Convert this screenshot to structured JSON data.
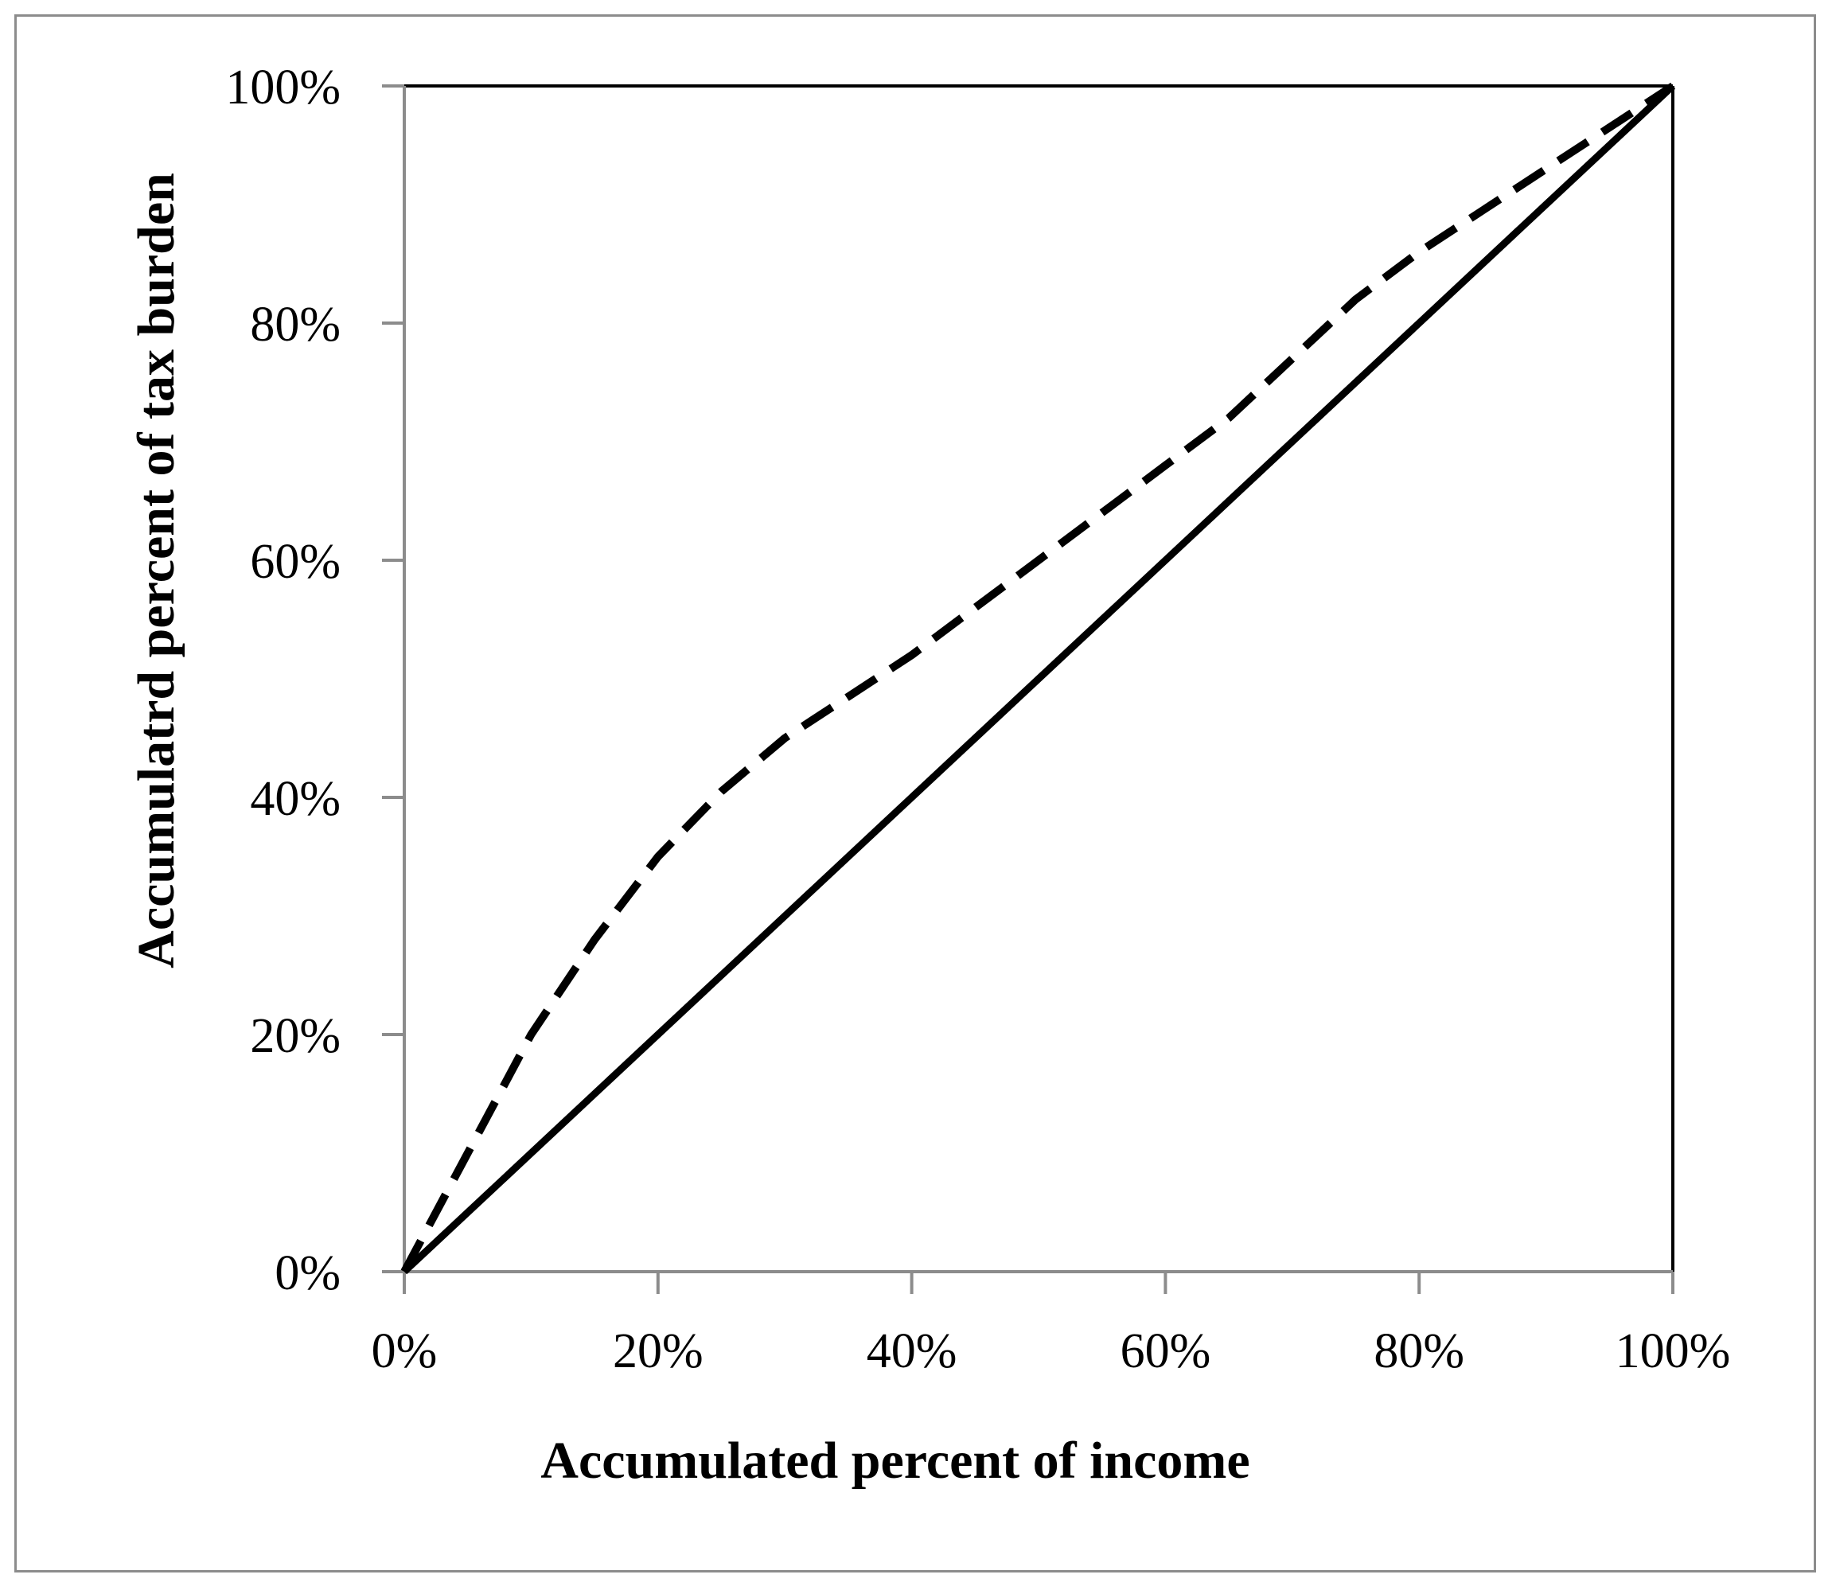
{
  "chart_data": {
    "type": "line",
    "xlabel": "Accumulated percent of income",
    "ylabel": "Accumulatrd percent of tax burden",
    "xlim": [
      0,
      100
    ],
    "ylim": [
      0,
      100
    ],
    "x_ticks": [
      "0%",
      "20%",
      "40%",
      "60%",
      "80%",
      "100%"
    ],
    "y_ticks": [
      "0%",
      "20%",
      "40%",
      "60%",
      "80%",
      "100%"
    ],
    "grid": false,
    "legend": "none",
    "series": [
      {
        "style": "solid",
        "color": "#000000",
        "x": [
          0,
          100
        ],
        "y": [
          0,
          100
        ]
      },
      {
        "style": "dashed",
        "color": "#000000",
        "x": [
          0,
          5,
          10,
          15,
          20,
          25,
          30,
          35,
          40,
          45,
          50,
          55,
          60,
          65,
          70,
          75,
          80,
          85,
          90,
          95,
          100
        ],
        "y": [
          0,
          10,
          20,
          28,
          35,
          40.5,
          45,
          48.5,
          52,
          56,
          60,
          64,
          68,
          72,
          77,
          82,
          86,
          89.5,
          93,
          96.5,
          100
        ]
      }
    ]
  }
}
